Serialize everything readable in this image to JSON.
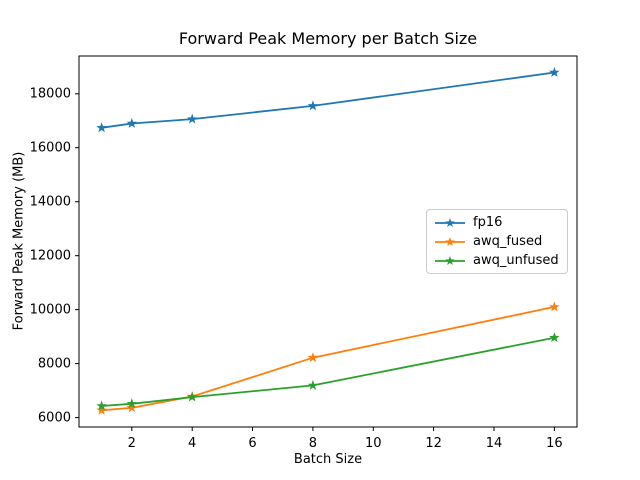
{
  "chart_data": {
    "type": "line",
    "title": "Forward Peak Memory per Batch Size",
    "xlabel": "Batch Size",
    "ylabel": "Forward Peak Memory (MB)",
    "x": [
      1,
      2,
      4,
      8,
      16
    ],
    "series": [
      {
        "name": "fp16",
        "color": "#1f77b4",
        "values": [
          16740,
          16900,
          17060,
          17550,
          18790
        ]
      },
      {
        "name": "awq_fused",
        "color": "#ff7f0e",
        "values": [
          6270,
          6360,
          6780,
          8220,
          10100
        ]
      },
      {
        "name": "awq_unfused",
        "color": "#2ca02c",
        "values": [
          6430,
          6510,
          6760,
          7190,
          8960
        ]
      }
    ],
    "marker": "star",
    "line_width": 1.8,
    "xticks": [
      2,
      4,
      6,
      8,
      10,
      12,
      14,
      16
    ],
    "yticks": [
      6000,
      8000,
      10000,
      12000,
      14000,
      16000,
      18000
    ],
    "xlim": [
      0.25,
      16.75
    ],
    "ylim": [
      5650,
      19400
    ],
    "grid": false,
    "legend_position": "center-right",
    "axis_color": "#000000",
    "background_color": "#ffffff"
  }
}
